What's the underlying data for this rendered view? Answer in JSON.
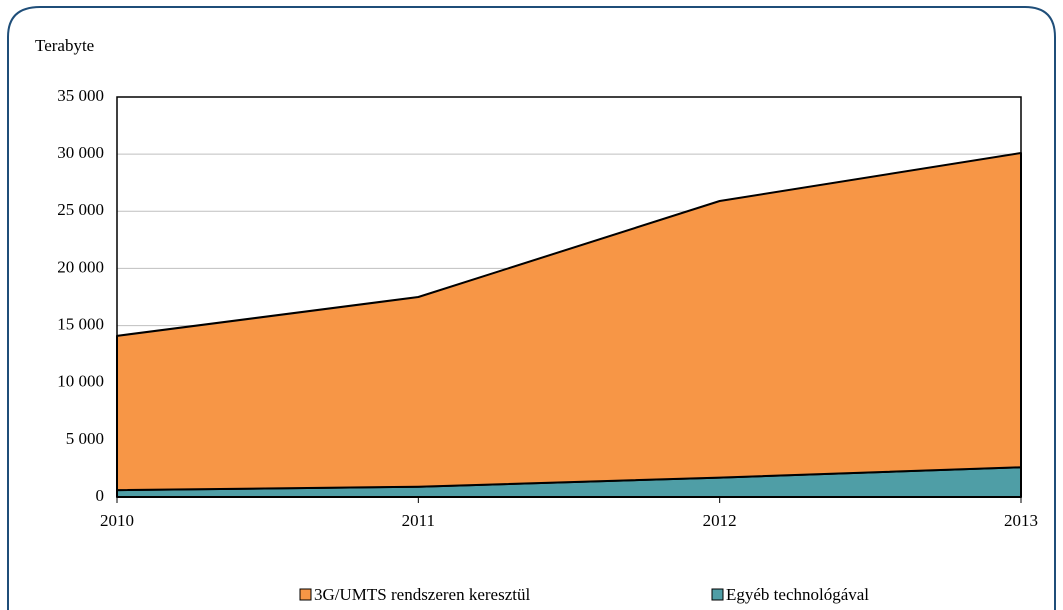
{
  "chart_data": {
    "type": "area",
    "stacked": true,
    "y_label": "Terabyte",
    "x": [
      2010,
      2011,
      2012,
      2013
    ],
    "xlim": [
      2010,
      2013
    ],
    "xticks": [
      2010,
      2011,
      2012,
      2013
    ],
    "ylim": [
      0,
      35000
    ],
    "yticks": [
      0,
      {
        "value": 5000,
        "label": "5 000"
      },
      {
        "value": 10000,
        "label": "10 000"
      },
      {
        "value": 15000,
        "label": "15 000"
      },
      {
        "value": 20000,
        "label": "20 000"
      },
      {
        "value": 25000,
        "label": "25 000"
      },
      {
        "value": 30000,
        "label": "30 000"
      },
      {
        "value": 35000,
        "label": "35 000"
      }
    ],
    "grid": true,
    "legend": "bottom",
    "series": [
      {
        "name": "3G/UMTS rendszeren keresztül",
        "color": "#f79646",
        "values": [
          13500,
          16600,
          24200,
          27500
        ]
      },
      {
        "name": "Egyéb technológával",
        "color": "#4f9ea6",
        "values": [
          600,
          900,
          1700,
          2600
        ]
      }
    ]
  }
}
